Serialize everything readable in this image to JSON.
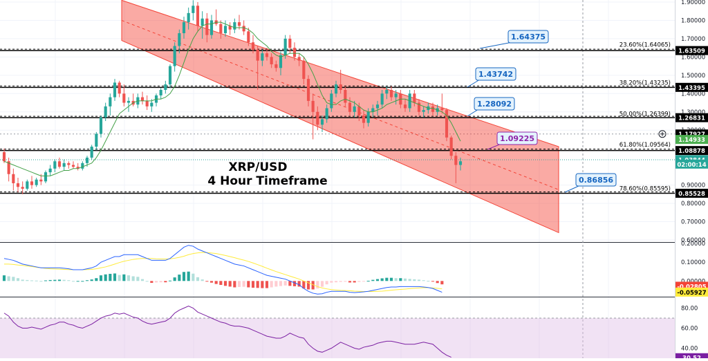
{
  "chart_data": {
    "type": "candlestick",
    "title": "XRP/USD",
    "subtitle": "4 Hour Timeframe",
    "price_axis": {
      "ylim": [
        0.6,
        1.9
      ],
      "ticks": [
        "1.90000",
        "1.80000",
        "1.70000",
        "1.60000",
        "1.50000",
        "1.40000",
        "1.30000",
        "1.20000",
        "0.90000",
        "0.80000",
        "0.70000",
        "0.60000"
      ],
      "tick_values": [
        1.9,
        1.8,
        1.7,
        1.6,
        1.5,
        1.4,
        1.3,
        1.2,
        0.9,
        0.8,
        0.7,
        0.6
      ],
      "price_labels": [
        {
          "text": "1.63509",
          "value": 1.63509,
          "color": "#000000"
        },
        {
          "text": "1.43395",
          "value": 1.43395,
          "color": "#000000"
        },
        {
          "text": "1.26831",
          "value": 1.26831,
          "color": "#000000"
        },
        {
          "text": "1.17927",
          "value": 1.17927,
          "color": "#000000"
        },
        {
          "text": "1.14933",
          "value": 1.14933,
          "color": "#4caf50"
        },
        {
          "text": "1.08878",
          "value": 1.08878,
          "color": "#000000"
        },
        {
          "text": "1.03844",
          "value": 1.03844,
          "color": "#26a69a"
        },
        {
          "text": "02:00:14",
          "value": 1.0145,
          "color": "#26a69a"
        },
        {
          "text": "0.85528",
          "value": 0.85528,
          "color": "#000000"
        }
      ]
    },
    "horizontal_levels": [
      {
        "value": 1.63509,
        "style": "solid"
      },
      {
        "value": 1.43395,
        "style": "solid"
      },
      {
        "value": 1.26831,
        "style": "solid"
      },
      {
        "value": 1.08878,
        "style": "solid"
      },
      {
        "value": 0.85528,
        "style": "solid"
      }
    ],
    "fib_labels": [
      {
        "text": "23.60%(1.64065)",
        "value": 1.64065
      },
      {
        "text": "38.20%(1.43235)",
        "value": 1.43235
      },
      {
        "text": "50.00%(1.26399)",
        "value": 1.26399
      },
      {
        "text": "61.80%(1.09564)",
        "value": 1.09564
      },
      {
        "text": "78.60%(0.85595)",
        "value": 0.85595
      }
    ],
    "callouts": [
      {
        "text": "1.64375",
        "value": 1.64375,
        "color": "#1565c0"
      },
      {
        "text": "1.43742",
        "value": 1.43742,
        "color": "#1565c0"
      },
      {
        "text": "1.28092",
        "value": 1.28092,
        "color": "#1565c0"
      },
      {
        "text": "1.09225",
        "value": 1.09225,
        "color": "#8e24aa"
      },
      {
        "text": "0.86856",
        "value": 0.86856,
        "color": "#1565c0"
      }
    ],
    "channel": {
      "color": "#f44336",
      "upper_start": 1.91,
      "upper_end": 1.11,
      "lower_start": 1.69,
      "lower_end": 0.64
    },
    "candles": [
      [
        1.08,
        1.1,
        1.02,
        1.03
      ],
      [
        1.03,
        1.05,
        0.92,
        0.96
      ],
      [
        0.96,
        0.99,
        0.87,
        0.91
      ],
      [
        0.91,
        0.94,
        0.86,
        0.89
      ],
      [
        0.89,
        0.92,
        0.85,
        0.88
      ],
      [
        0.88,
        0.93,
        0.87,
        0.92
      ],
      [
        0.92,
        0.95,
        0.88,
        0.9
      ],
      [
        0.9,
        0.94,
        0.89,
        0.93
      ],
      [
        0.93,
        0.96,
        0.9,
        0.92
      ],
      [
        0.92,
        0.98,
        0.91,
        0.97
      ],
      [
        0.97,
        1.01,
        0.95,
        0.99
      ],
      [
        0.99,
        1.04,
        0.97,
        1.03
      ],
      [
        1.03,
        1.05,
        0.99,
        1.0
      ],
      [
        1.0,
        1.04,
        0.98,
        1.02
      ],
      [
        1.02,
        1.03,
        0.99,
        1.01
      ],
      [
        1.01,
        1.03,
        0.99,
        1.0
      ],
      [
        1.0,
        1.02,
        0.98,
        0.99
      ],
      [
        0.99,
        1.03,
        0.98,
        1.02
      ],
      [
        1.02,
        1.06,
        1.0,
        1.05
      ],
      [
        1.05,
        1.12,
        1.04,
        1.11
      ],
      [
        1.11,
        1.19,
        1.09,
        1.18
      ],
      [
        1.18,
        1.28,
        1.16,
        1.27
      ],
      [
        1.27,
        1.35,
        1.25,
        1.33
      ],
      [
        1.33,
        1.4,
        1.28,
        1.38
      ],
      [
        1.38,
        1.48,
        1.36,
        1.46
      ],
      [
        1.46,
        1.47,
        1.38,
        1.4
      ],
      [
        1.4,
        1.45,
        1.33,
        1.35
      ],
      [
        1.35,
        1.38,
        1.3,
        1.36
      ],
      [
        1.36,
        1.4,
        1.33,
        1.34
      ],
      [
        1.34,
        1.4,
        1.32,
        1.38
      ],
      [
        1.38,
        1.41,
        1.34,
        1.36
      ],
      [
        1.36,
        1.39,
        1.31,
        1.33
      ],
      [
        1.33,
        1.37,
        1.3,
        1.35
      ],
      [
        1.35,
        1.4,
        1.33,
        1.39
      ],
      [
        1.39,
        1.43,
        1.37,
        1.42
      ],
      [
        1.42,
        1.47,
        1.4,
        1.45
      ],
      [
        1.45,
        1.56,
        1.43,
        1.55
      ],
      [
        1.55,
        1.68,
        1.52,
        1.66
      ],
      [
        1.66,
        1.75,
        1.62,
        1.73
      ],
      [
        1.73,
        1.82,
        1.7,
        1.79
      ],
      [
        1.79,
        1.87,
        1.75,
        1.84
      ],
      [
        1.84,
        1.91,
        1.8,
        1.88
      ],
      [
        1.88,
        1.9,
        1.74,
        1.77
      ],
      [
        1.77,
        1.85,
        1.7,
        1.81
      ],
      [
        1.81,
        1.84,
        1.68,
        1.72
      ],
      [
        1.72,
        1.83,
        1.7,
        1.8
      ],
      [
        1.8,
        1.86,
        1.77,
        1.78
      ],
      [
        1.78,
        1.8,
        1.7,
        1.73
      ],
      [
        1.73,
        1.8,
        1.71,
        1.77
      ],
      [
        1.77,
        1.79,
        1.72,
        1.75
      ],
      [
        1.75,
        1.81,
        1.73,
        1.79
      ],
      [
        1.79,
        1.83,
        1.75,
        1.77
      ],
      [
        1.77,
        1.8,
        1.72,
        1.74
      ],
      [
        1.74,
        1.76,
        1.66,
        1.68
      ],
      [
        1.68,
        1.72,
        1.62,
        1.64
      ],
      [
        1.64,
        1.66,
        1.42,
        1.58
      ],
      [
        1.58,
        1.64,
        1.55,
        1.62
      ],
      [
        1.62,
        1.65,
        1.58,
        1.6
      ],
      [
        1.6,
        1.62,
        1.54,
        1.56
      ],
      [
        1.56,
        1.58,
        1.52,
        1.54
      ],
      [
        1.54,
        1.63,
        1.5,
        1.61
      ],
      [
        1.61,
        1.72,
        1.59,
        1.7
      ],
      [
        1.7,
        1.72,
        1.62,
        1.65
      ],
      [
        1.65,
        1.68,
        1.58,
        1.6
      ],
      [
        1.6,
        1.62,
        1.55,
        1.58
      ],
      [
        1.58,
        1.6,
        1.45,
        1.48
      ],
      [
        1.48,
        1.5,
        1.33,
        1.36
      ],
      [
        1.36,
        1.4,
        1.15,
        1.3
      ],
      [
        1.3,
        1.33,
        1.2,
        1.23
      ],
      [
        1.23,
        1.28,
        1.19,
        1.26
      ],
      [
        1.26,
        1.34,
        1.24,
        1.32
      ],
      [
        1.32,
        1.42,
        1.3,
        1.4
      ],
      [
        1.4,
        1.47,
        1.38,
        1.45
      ],
      [
        1.45,
        1.53,
        1.4,
        1.42
      ],
      [
        1.42,
        1.44,
        1.33,
        1.35
      ],
      [
        1.35,
        1.38,
        1.28,
        1.3
      ],
      [
        1.3,
        1.36,
        1.27,
        1.33
      ],
      [
        1.33,
        1.35,
        1.25,
        1.28
      ],
      [
        1.28,
        1.31,
        1.21,
        1.24
      ],
      [
        1.24,
        1.32,
        1.22,
        1.3
      ],
      [
        1.3,
        1.34,
        1.27,
        1.32
      ],
      [
        1.32,
        1.36,
        1.28,
        1.34
      ],
      [
        1.34,
        1.42,
        1.32,
        1.4
      ],
      [
        1.4,
        1.44,
        1.37,
        1.42
      ],
      [
        1.42,
        1.44,
        1.36,
        1.38
      ],
      [
        1.38,
        1.42,
        1.34,
        1.4
      ],
      [
        1.4,
        1.42,
        1.32,
        1.34
      ],
      [
        1.34,
        1.37,
        1.3,
        1.32
      ],
      [
        1.32,
        1.42,
        1.3,
        1.4
      ],
      [
        1.4,
        1.42,
        1.33,
        1.35
      ],
      [
        1.35,
        1.37,
        1.28,
        1.3
      ],
      [
        1.3,
        1.33,
        1.27,
        1.31
      ],
      [
        1.31,
        1.35,
        1.29,
        1.33
      ],
      [
        1.33,
        1.35,
        1.28,
        1.3
      ],
      [
        1.3,
        1.34,
        1.28,
        1.32
      ],
      [
        1.32,
        1.4,
        1.29,
        1.31
      ],
      [
        1.31,
        1.32,
        1.14,
        1.16
      ],
      [
        1.16,
        1.17,
        1.04,
        1.06
      ],
      [
        1.06,
        1.08,
        0.91,
        1.01
      ],
      [
        1.01,
        1.05,
        0.98,
        1.03
      ]
    ],
    "sma": [
      1.03,
      1.02,
      1.01,
      1.0,
      0.99,
      0.98,
      0.97,
      0.96,
      0.95,
      0.95,
      0.95,
      0.96,
      0.97,
      0.98,
      0.98,
      0.99,
      0.99,
      1.0,
      1.01,
      1.02,
      1.05,
      1.09,
      1.14,
      1.19,
      1.24,
      1.29,
      1.31,
      1.33,
      1.35,
      1.36,
      1.36,
      1.36,
      1.36,
      1.37,
      1.37,
      1.38,
      1.4,
      1.44,
      1.5,
      1.57,
      1.64,
      1.7,
      1.74,
      1.77,
      1.78,
      1.78,
      1.79,
      1.79,
      1.78,
      1.77,
      1.76,
      1.76,
      1.76,
      1.75,
      1.73,
      1.7,
      1.68,
      1.66,
      1.63,
      1.61,
      1.6,
      1.61,
      1.62,
      1.62,
      1.62,
      1.6,
      1.56,
      1.51,
      1.45,
      1.39,
      1.35,
      1.34,
      1.34,
      1.36,
      1.37,
      1.36,
      1.35,
      1.33,
      1.31,
      1.3,
      1.3,
      1.31,
      1.32,
      1.34,
      1.35,
      1.36,
      1.37,
      1.37,
      1.36,
      1.35,
      1.34,
      1.33,
      1.32,
      1.32,
      1.31,
      1.3,
      1.28,
      1.24,
      1.19,
      1.14
    ],
    "macd": {
      "ylim": [
        -0.08,
        0.2
      ],
      "ticks": [
        "0.20000",
        "0.10000",
        "0.00000"
      ],
      "tick_values": [
        0.2,
        0.1,
        0.0
      ],
      "price_labels": [
        {
          "text": "-0.02805",
          "value": -0.02805,
          "color": "#f44336"
        },
        {
          "text": "-0.05927",
          "value": -0.05927,
          "color": "#ffeb3b"
        }
      ],
      "macd_line": [
        0.12,
        0.115,
        0.11,
        0.1,
        0.09,
        0.085,
        0.08,
        0.075,
        0.07,
        0.07,
        0.07,
        0.07,
        0.07,
        0.068,
        0.065,
        0.06,
        0.06,
        0.06,
        0.065,
        0.07,
        0.08,
        0.1,
        0.11,
        0.12,
        0.13,
        0.13,
        0.14,
        0.14,
        0.14,
        0.14,
        0.13,
        0.12,
        0.11,
        0.11,
        0.11,
        0.11,
        0.12,
        0.14,
        0.16,
        0.18,
        0.19,
        0.185,
        0.17,
        0.16,
        0.15,
        0.14,
        0.13,
        0.12,
        0.11,
        0.1,
        0.09,
        0.085,
        0.08,
        0.07,
        0.06,
        0.05,
        0.04,
        0.03,
        0.025,
        0.02,
        0.015,
        0.01,
        0.0,
        -0.01,
        -0.02,
        -0.04,
        -0.055,
        -0.065,
        -0.07,
        -0.068,
        -0.06,
        -0.055,
        -0.055,
        -0.055,
        -0.055,
        -0.06,
        -0.062,
        -0.06,
        -0.058,
        -0.055,
        -0.05,
        -0.045,
        -0.04,
        -0.035,
        -0.032,
        -0.032,
        -0.03,
        -0.03,
        -0.03,
        -0.03,
        -0.03,
        -0.032,
        -0.035,
        -0.04,
        -0.05,
        -0.06
      ],
      "signal_line": [
        0.09,
        0.09,
        0.088,
        0.085,
        0.083,
        0.08,
        0.077,
        0.073,
        0.07,
        0.067,
        0.065,
        0.064,
        0.063,
        0.062,
        0.061,
        0.06,
        0.06,
        0.06,
        0.061,
        0.062,
        0.065,
        0.07,
        0.075,
        0.082,
        0.09,
        0.098,
        0.105,
        0.11,
        0.115,
        0.118,
        0.12,
        0.12,
        0.12,
        0.118,
        0.117,
        0.117,
        0.118,
        0.121,
        0.126,
        0.132,
        0.14,
        0.146,
        0.15,
        0.152,
        0.151,
        0.149,
        0.146,
        0.141,
        0.136,
        0.13,
        0.124,
        0.117,
        0.111,
        0.104,
        0.096,
        0.087,
        0.078,
        0.068,
        0.059,
        0.05,
        0.042,
        0.034,
        0.026,
        0.018,
        0.01,
        0.0,
        -0.01,
        -0.02,
        -0.03,
        -0.037,
        -0.042,
        -0.046,
        -0.048,
        -0.05,
        -0.051,
        -0.052,
        -0.054,
        -0.055,
        -0.056,
        -0.056,
        -0.056,
        -0.055,
        -0.054,
        -0.052,
        -0.049,
        -0.047,
        -0.045,
        -0.043,
        -0.041,
        -0.039,
        -0.037,
        -0.036,
        -0.036,
        -0.037,
        -0.039,
        -0.042
      ],
      "histogram": [
        0.03,
        0.025,
        0.022,
        0.015,
        0.007,
        0.005,
        0.003,
        0.002,
        0.0,
        0.003,
        0.005,
        0.006,
        0.007,
        0.006,
        0.004,
        0.0,
        0.0,
        0.0,
        0.004,
        0.008,
        0.015,
        0.03,
        0.035,
        0.038,
        0.04,
        0.032,
        0.035,
        0.03,
        0.025,
        0.022,
        0.01,
        0.0,
        -0.01,
        -0.008,
        -0.007,
        -0.007,
        0.002,
        0.019,
        0.034,
        0.048,
        0.05,
        0.039,
        0.02,
        0.008,
        -0.001,
        -0.009,
        -0.016,
        -0.021,
        -0.026,
        -0.03,
        -0.034,
        -0.032,
        -0.031,
        -0.034,
        -0.036,
        -0.037,
        -0.038,
        -0.038,
        -0.034,
        -0.03,
        -0.027,
        -0.024,
        -0.026,
        -0.028,
        -0.03,
        -0.04,
        -0.045,
        -0.045,
        -0.04,
        -0.031,
        -0.018,
        -0.009,
        -0.007,
        -0.005,
        -0.004,
        -0.008,
        -0.008,
        -0.005,
        -0.002,
        0.001,
        0.006,
        0.01,
        0.014,
        0.017,
        0.017,
        0.015,
        0.015,
        0.013,
        0.011,
        0.009,
        0.007,
        0.004,
        0.001,
        -0.003,
        -0.011,
        -0.018
      ]
    },
    "rsi": {
      "ylim": [
        30,
        90
      ],
      "ticks": [
        "80.00",
        "60.00",
        "40.00"
      ],
      "tick_values": [
        80,
        60,
        40
      ],
      "band": [
        30,
        70
      ],
      "price_labels": [
        {
          "text": "30.52",
          "value": 30.52,
          "color": "#7b1fa2"
        }
      ],
      "values": [
        75,
        72,
        66,
        62,
        60,
        60,
        61,
        60,
        59,
        61,
        63,
        64,
        66,
        66,
        64,
        63,
        61,
        60,
        62,
        64,
        67,
        70,
        72,
        73,
        75,
        74,
        75,
        73,
        71,
        70,
        67,
        65,
        64,
        65,
        66,
        67,
        70,
        75,
        78,
        80,
        82,
        80,
        76,
        74,
        72,
        70,
        68,
        66,
        65,
        63,
        62,
        62,
        61,
        60,
        58,
        56,
        54,
        52,
        51,
        50,
        50,
        52,
        55,
        53,
        51,
        50,
        44,
        40,
        37,
        36,
        38,
        40,
        43,
        46,
        44,
        42,
        40,
        39,
        41,
        42,
        43,
        45,
        46,
        47,
        47,
        46,
        45,
        44,
        44,
        44,
        45,
        46,
        45,
        44,
        40,
        36,
        33,
        31
      ]
    }
  }
}
